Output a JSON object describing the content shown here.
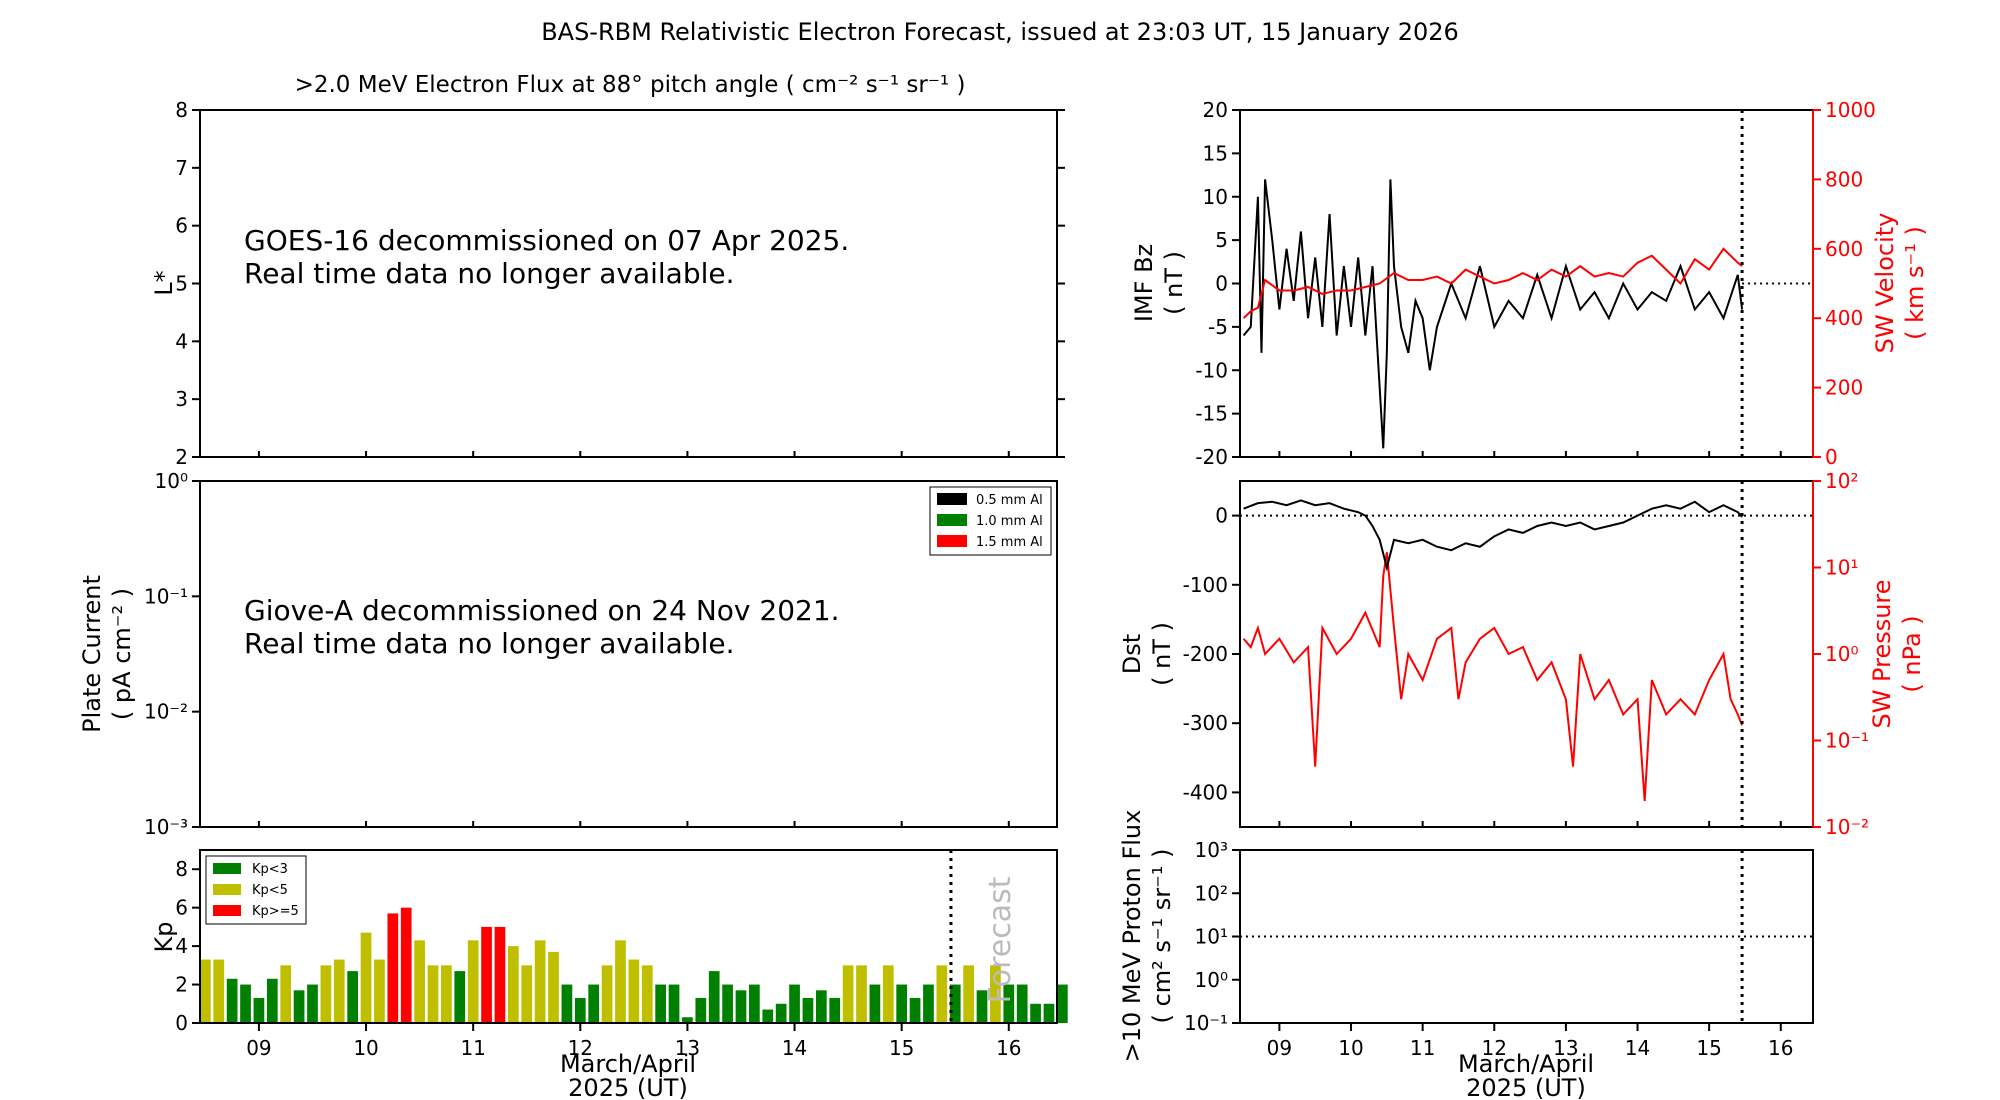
{
  "title": "BAS-RBM Relativistic Electron Forecast, issued at 23:03 UT, 15 January 2026",
  "colors": {
    "black": "#000000",
    "red": "#ff0000",
    "green": "#008000",
    "olive": "#bfbf00",
    "forecast": "#bbbbbb"
  },
  "chart_data": [
    {
      "id": "electron-flux",
      "type": "line",
      "title": ">2.0 MeV Electron Flux at 88° pitch angle ( cm⁻² s⁻¹ sr⁻¹ )",
      "ylabel": "L*",
      "ylim": [
        2,
        8
      ],
      "yticks": [
        2,
        3,
        4,
        5,
        6,
        7,
        8
      ],
      "series": [],
      "message": [
        "GOES-16 decommissioned on 07 Apr 2025.",
        "Real time data no longer available."
      ]
    },
    {
      "id": "plate-current",
      "type": "line",
      "ylabel": [
        "Plate Current",
        "( pA cm⁻² )"
      ],
      "yscale": "log",
      "ylim": [
        0.001,
        1
      ],
      "yticks": [
        "10⁰",
        "10⁻¹",
        "10⁻²",
        "10⁻³"
      ],
      "legend": [
        {
          "label": "0.5 mm Al",
          "color": "#000000"
        },
        {
          "label": "1.0 mm Al",
          "color": "#008000"
        },
        {
          "label": "1.5 mm Al",
          "color": "#ff0000"
        }
      ],
      "series": [],
      "message": [
        "Giove-A decommissioned on 24 Nov 2021.",
        "Real time data no longer available."
      ]
    },
    {
      "id": "kp",
      "type": "bar",
      "ylabel": "Kp",
      "ylim": [
        0,
        9
      ],
      "yticks": [
        0,
        2,
        4,
        6,
        8
      ],
      "xlabel": [
        "March/April",
        "2025 (UT)"
      ],
      "xticks": [
        "09",
        "10",
        "11",
        "12",
        "13",
        "14",
        "15",
        "16"
      ],
      "xlim_days": [
        8.45,
        16.45
      ],
      "bar_width_days": 0.1,
      "start_day": 8.5,
      "bar_step_days": 0.125,
      "values": [
        3.3,
        3.3,
        2.3,
        2.0,
        1.3,
        2.3,
        3.0,
        1.7,
        2.0,
        3.0,
        3.3,
        2.7,
        4.7,
        3.3,
        5.7,
        6.0,
        4.3,
        3.0,
        3.0,
        2.7,
        4.3,
        5.0,
        5.0,
        4.0,
        3.0,
        4.3,
        3.7,
        2.0,
        1.3,
        2.0,
        3.0,
        4.3,
        3.3,
        3.0,
        2.0,
        2.0,
        0.3,
        1.3,
        2.7,
        2.0,
        1.7,
        2.0,
        0.7,
        1.0,
        2.0,
        1.3,
        1.7,
        1.3,
        3.0,
        3.0,
        2.0,
        3.0,
        2.0,
        1.3,
        2.0,
        3.0,
        2.0,
        3.0,
        1.7,
        3.0,
        2.0,
        2.0,
        1.0,
        1.0,
        2.0
      ],
      "legend": [
        {
          "label": "Kp<3",
          "color": "#008000"
        },
        {
          "label": "Kp<5",
          "color": "#bfbf00"
        },
        {
          "label": "Kp>=5",
          "color": "#ff0000"
        }
      ],
      "now_day": 15.46,
      "forecast_label": "Forecast"
    },
    {
      "id": "imf-sw",
      "type": "line",
      "ylabel_left": [
        "IMF Bz",
        "( nT )"
      ],
      "ylabel_right": [
        "SW Velocity",
        "( km s⁻¹ )"
      ],
      "ylim_left": [
        -20,
        20
      ],
      "yticks_left": [
        -20,
        -15,
        -10,
        -5,
        0,
        5,
        10,
        15,
        20
      ],
      "ylim_right": [
        0,
        1000
      ],
      "yticks_right": [
        0,
        200,
        400,
        600,
        800,
        1000
      ],
      "series": [
        {
          "name": "IMF Bz",
          "axis": "left",
          "color": "#000000",
          "x": [
            8.5,
            8.6,
            8.7,
            8.75,
            8.8,
            8.9,
            9.0,
            9.1,
            9.2,
            9.3,
            9.4,
            9.5,
            9.6,
            9.7,
            9.8,
            9.9,
            10.0,
            10.1,
            10.2,
            10.3,
            10.4,
            10.45,
            10.5,
            10.55,
            10.6,
            10.7,
            10.8,
            10.9,
            11.0,
            11.1,
            11.2,
            11.4,
            11.6,
            11.8,
            12.0,
            12.2,
            12.4,
            12.6,
            12.8,
            13.0,
            13.2,
            13.4,
            13.6,
            13.8,
            14.0,
            14.2,
            14.4,
            14.6,
            14.8,
            15.0,
            15.2,
            15.4,
            15.46
          ],
          "y": [
            -6,
            -5,
            10,
            -8,
            12,
            5,
            -3,
            4,
            -2,
            6,
            -4,
            3,
            -5,
            8,
            -6,
            2,
            -5,
            3,
            -6,
            2,
            -12,
            -19,
            -8,
            12,
            2,
            -5,
            -8,
            -2,
            -4,
            -10,
            -5,
            0,
            -4,
            2,
            -5,
            -2,
            -4,
            1,
            -4,
            2,
            -3,
            -1,
            -4,
            0,
            -3,
            -1,
            -2,
            2,
            -3,
            -1,
            -4,
            1,
            -3
          ]
        },
        {
          "name": "SW Velocity",
          "axis": "right",
          "color": "#ff0000",
          "x": [
            8.5,
            8.6,
            8.7,
            8.8,
            9.0,
            9.2,
            9.4,
            9.6,
            9.8,
            10.0,
            10.2,
            10.4,
            10.6,
            10.8,
            11.0,
            11.2,
            11.4,
            11.6,
            11.8,
            12.0,
            12.2,
            12.4,
            12.6,
            12.8,
            13.0,
            13.2,
            13.4,
            13.6,
            13.8,
            14.0,
            14.2,
            14.4,
            14.6,
            14.8,
            15.0,
            15.2,
            15.4,
            15.46
          ],
          "y": [
            400,
            420,
            430,
            510,
            480,
            480,
            490,
            470,
            480,
            480,
            490,
            500,
            530,
            510,
            510,
            520,
            500,
            540,
            520,
            500,
            510,
            530,
            510,
            540,
            520,
            550,
            520,
            530,
            520,
            560,
            580,
            540,
            500,
            570,
            540,
            600,
            560,
            550
          ]
        }
      ],
      "now_day": 15.46
    },
    {
      "id": "dst-pressure",
      "type": "line",
      "ylabel_left": [
        "Dst",
        "( nT )"
      ],
      "ylabel_right": [
        "SW Pressure",
        "( nPa )"
      ],
      "ylim_left": [
        -450,
        50
      ],
      "yticks_left": [
        0,
        -100,
        -200,
        -300,
        -400
      ],
      "yscale_right": "log",
      "ylim_right": [
        0.01,
        100
      ],
      "yticks_right": [
        "10²",
        "10¹",
        "10⁰",
        "10⁻¹",
        "10⁻²"
      ],
      "series": [
        {
          "name": "Dst",
          "axis": "left",
          "color": "#000000",
          "x": [
            8.5,
            8.7,
            8.9,
            9.1,
            9.3,
            9.5,
            9.7,
            9.9,
            10.1,
            10.2,
            10.3,
            10.4,
            10.5,
            10.6,
            10.8,
            11.0,
            11.2,
            11.4,
            11.6,
            11.8,
            12.0,
            12.2,
            12.4,
            12.6,
            12.8,
            13.0,
            13.2,
            13.4,
            13.6,
            13.8,
            14.0,
            14.2,
            14.4,
            14.6,
            14.8,
            15.0,
            15.2,
            15.4,
            15.46
          ],
          "y": [
            10,
            18,
            20,
            15,
            22,
            15,
            18,
            10,
            5,
            0,
            -15,
            -35,
            -75,
            -35,
            -40,
            -35,
            -45,
            -50,
            -40,
            -45,
            -30,
            -20,
            -25,
            -15,
            -10,
            -15,
            -10,
            -20,
            -15,
            -10,
            0,
            10,
            15,
            10,
            20,
            5,
            15,
            5,
            -2
          ]
        },
        {
          "name": "SW Pressure",
          "axis": "right",
          "color": "#ff0000",
          "x": [
            8.5,
            8.6,
            8.7,
            8.8,
            9.0,
            9.2,
            9.4,
            9.5,
            9.6,
            9.8,
            10.0,
            10.2,
            10.4,
            10.45,
            10.5,
            10.6,
            10.7,
            10.8,
            11.0,
            11.2,
            11.4,
            11.5,
            11.6,
            11.8,
            12.0,
            12.2,
            12.4,
            12.6,
            12.8,
            13.0,
            13.1,
            13.2,
            13.4,
            13.6,
            13.8,
            14.0,
            14.1,
            14.2,
            14.4,
            14.6,
            14.8,
            15.0,
            15.2,
            15.3,
            15.4,
            15.46
          ],
          "y": [
            1.5,
            1.2,
            2.0,
            1.0,
            1.5,
            0.8,
            1.2,
            0.05,
            2.0,
            1.0,
            1.5,
            3.0,
            1.2,
            8.0,
            15.0,
            2.0,
            0.3,
            1.0,
            0.5,
            1.5,
            2.0,
            0.3,
            0.8,
            1.5,
            2.0,
            1.0,
            1.2,
            0.5,
            0.8,
            0.3,
            0.05,
            1.0,
            0.3,
            0.5,
            0.2,
            0.3,
            0.02,
            0.5,
            0.2,
            0.3,
            0.2,
            0.5,
            1.0,
            0.3,
            0.2,
            0.15
          ]
        }
      ],
      "now_day": 15.46
    },
    {
      "id": "proton-flux",
      "type": "line",
      "ylabel": [
        ">10 MeV Proton Flux",
        "( cm² s⁻¹ sr⁻¹ )"
      ],
      "yscale": "log",
      "ylim": [
        0.1,
        1000
      ],
      "yticks": [
        "10³",
        "10²",
        "10¹",
        "10⁰",
        "10⁻¹"
      ],
      "threshold": 10,
      "xlabel": [
        "March/April",
        "2025 (UT)"
      ],
      "xticks": [
        "09",
        "10",
        "11",
        "12",
        "13",
        "14",
        "15",
        "16"
      ],
      "xlim_days": [
        8.45,
        16.45
      ],
      "series": [],
      "now_day": 15.46
    }
  ]
}
